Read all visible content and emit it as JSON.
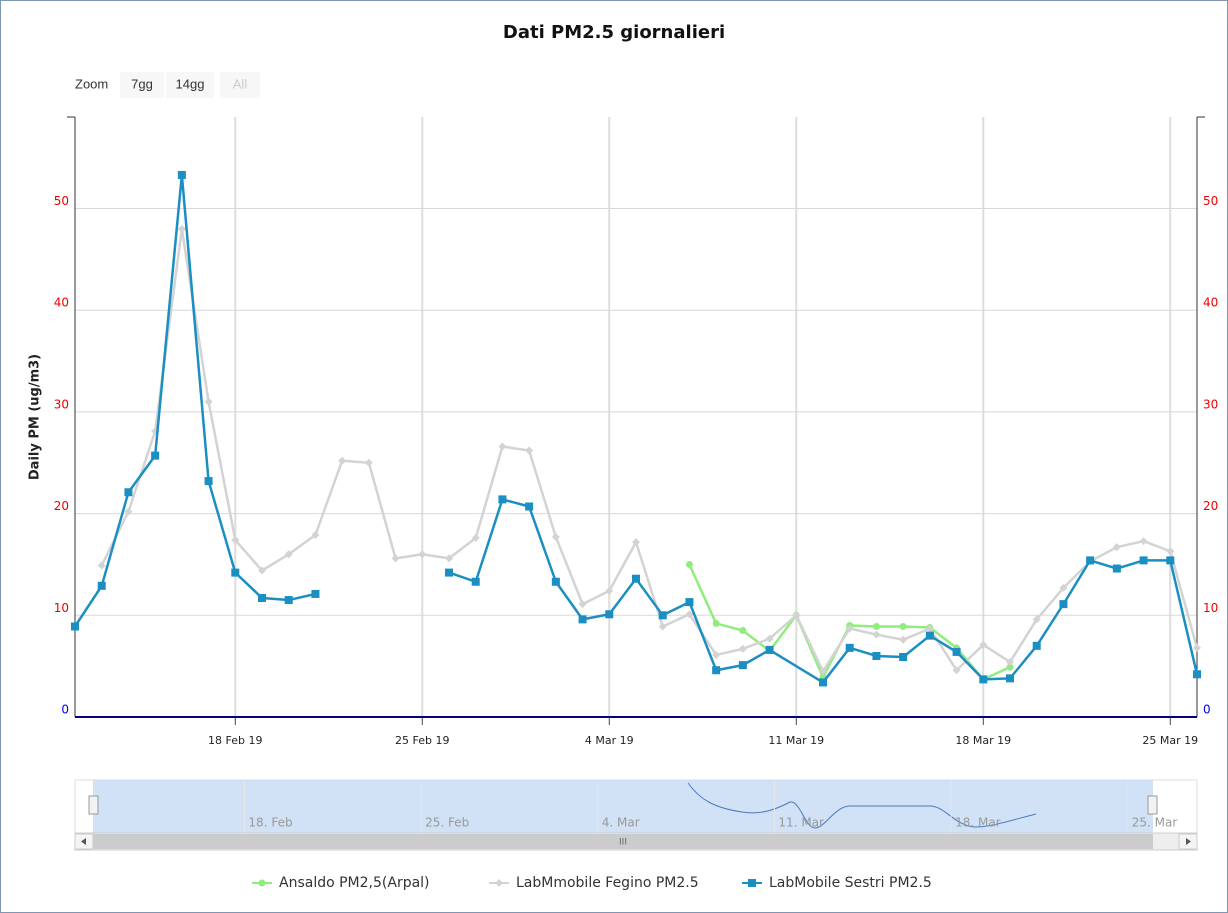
{
  "chart_data": {
    "type": "line",
    "title": "Dati PM2.5 giornalieri",
    "zoom": {
      "label": "Zoom",
      "buttons": [
        "7gg",
        "14gg",
        "All"
      ]
    },
    "ylabel": "Daily PM (ug/m3)",
    "xlim": [
      "2019-02-12",
      "2019-03-26"
    ],
    "xticks": [
      {
        "value": "2019-02-18",
        "label": "18 Feb 19"
      },
      {
        "value": "2019-02-25",
        "label": "25 Feb 19"
      },
      {
        "value": "2019-03-04",
        "label": "4 Mar 19"
      },
      {
        "value": "2019-03-11",
        "label": "11 Mar 19"
      },
      {
        "value": "2019-03-18",
        "label": "18 Mar 19"
      },
      {
        "value": "2019-03-25",
        "label": "25 Mar 19"
      }
    ],
    "ylim": [
      0,
      59
    ],
    "yticks": [
      0,
      10,
      20,
      30,
      40,
      50
    ],
    "grid": true,
    "legend": "bottom",
    "navigator": {
      "xticks": [
        {
          "value": "2019-02-18",
          "label": "18. Feb"
        },
        {
          "value": "2019-02-25",
          "label": "25. Feb"
        },
        {
          "value": "2019-03-04",
          "label": "4. Mar"
        },
        {
          "value": "2019-03-11",
          "label": "11. Mar"
        },
        {
          "value": "2019-03-18",
          "label": "18. Mar"
        },
        {
          "value": "2019-03-25",
          "label": "25. Mar"
        }
      ],
      "scrollbar_label": "III"
    },
    "series": [
      {
        "name": "Ansaldo PM2,5(Arpal)",
        "color": "#90ed7d",
        "marker": "circle",
        "x": [
          "2019-03-07",
          "2019-03-08",
          "2019-03-09",
          "2019-03-10",
          "2019-03-11",
          "2019-03-12",
          "2019-03-13",
          "2019-03-14",
          "2019-03-15",
          "2019-03-16",
          "2019-03-17",
          "2019-03-18",
          "2019-03-19"
        ],
        "values": [
          15.0,
          9.2,
          8.5,
          6.5,
          10.0,
          3.9,
          9.0,
          8.9,
          8.9,
          8.8,
          6.8,
          3.7,
          4.9
        ]
      },
      {
        "name": "LabMmobile Fegino PM2.5",
        "color": "#d3d3d3",
        "marker": "diamond",
        "x": [
          "2019-02-13",
          "2019-02-14",
          "2019-02-15",
          "2019-02-16",
          "2019-02-17",
          "2019-02-18",
          "2019-02-19",
          "2019-02-20",
          "2019-02-21",
          "2019-02-22",
          "2019-02-23",
          "2019-02-24",
          "2019-02-25",
          "2019-02-26",
          "2019-02-27",
          "2019-02-28",
          "2019-03-01",
          "2019-03-02",
          "2019-03-03",
          "2019-03-04",
          "2019-03-05",
          "2019-03-06",
          "2019-03-07",
          "2019-03-08",
          "2019-03-09",
          "2019-03-10",
          "2019-03-11",
          "2019-03-12",
          "2019-03-13",
          "2019-03-14",
          "2019-03-15",
          "2019-03-16",
          "2019-03-17",
          "2019-03-18",
          "2019-03-19",
          "2019-03-20",
          "2019-03-21",
          "2019-03-22",
          "2019-03-23",
          "2019-03-24",
          "2019-03-25",
          "2019-03-26"
        ],
        "values": [
          14.9,
          20.2,
          28.1,
          48,
          31.0,
          17.4,
          14.4,
          16.0,
          17.9,
          25.2,
          25.0,
          15.6,
          16.0,
          15.6,
          17.6,
          26.6,
          26.2,
          17.7,
          11.1,
          12.4,
          17.2,
          8.9,
          10.1,
          6.1,
          6.7,
          7.7,
          10.0,
          4.5,
          8.7,
          8.1,
          7.6,
          8.7,
          4.6,
          7.1,
          5.4,
          9.6,
          12.7,
          15.3,
          16.7,
          17.3,
          16.3,
          6.8
        ]
      },
      {
        "name": "LabMobile Sestri PM2.5",
        "color": "#1b8ec2",
        "marker": "square",
        "x": [
          "2019-02-12",
          "2019-02-13",
          "2019-02-14",
          "2019-02-15",
          "2019-02-16",
          "2019-02-17",
          "2019-02-18",
          "2019-02-19",
          "2019-02-20",
          "2019-02-21",
          "2019-02-22",
          "2019-02-23",
          "2019-02-24",
          "2019-02-25",
          "2019-02-26",
          "2019-02-27",
          "2019-02-28",
          "2019-03-01",
          "2019-03-02",
          "2019-03-03",
          "2019-03-04",
          "2019-03-05",
          "2019-03-06",
          "2019-03-07",
          "2019-03-08",
          "2019-03-09",
          "2019-03-10",
          "2019-03-12",
          "2019-03-13",
          "2019-03-14",
          "2019-03-15",
          "2019-03-16",
          "2019-03-17",
          "2019-03-18",
          "2019-03-19",
          "2019-03-20",
          "2019-03-21",
          "2019-03-22",
          "2019-03-23",
          "2019-03-24",
          "2019-03-25",
          "2019-03-26"
        ],
        "values": [
          8.9,
          12.9,
          22.1,
          25.7,
          53.3,
          23.2,
          14.2,
          11.7,
          11.5,
          12.1,
          null,
          null,
          null,
          null,
          14.2,
          13.3,
          21.4,
          20.7,
          13.3,
          9.6,
          10.1,
          13.6,
          10.0,
          11.3,
          4.6,
          5.1,
          6.6,
          3.4,
          6.8,
          6.0,
          5.9,
          8.0,
          6.4,
          3.7,
          3.8,
          7.0,
          11.1,
          15.4,
          14.6,
          15.4,
          15.4,
          4.2
        ]
      }
    ]
  }
}
